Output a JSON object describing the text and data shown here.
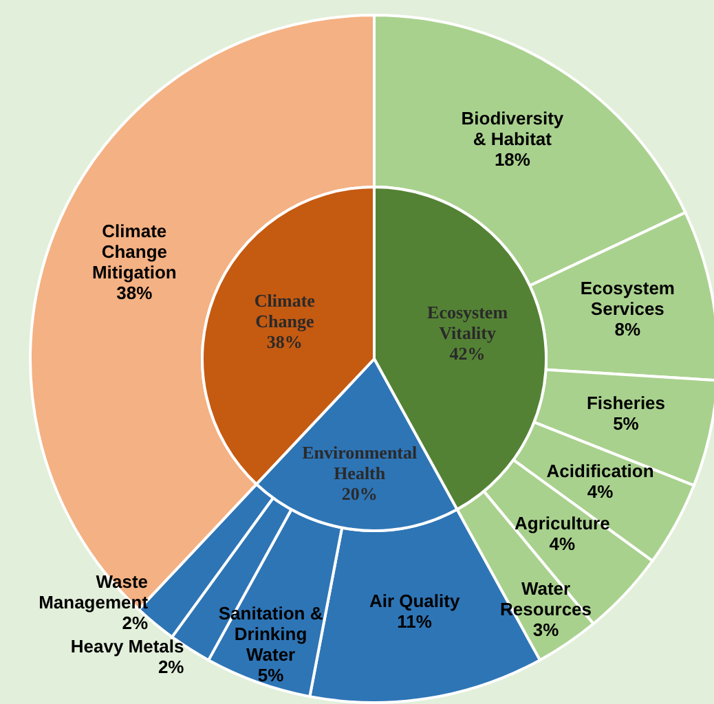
{
  "chart_data": [
    {
      "type": "pie",
      "categories": [
        "Ecosystem Vitality",
        "Environmental Health",
        "Climate Change"
      ],
      "values": [
        42,
        20,
        38
      ],
      "colors": [
        "#548235",
        "#2e75b6",
        "#c55a11"
      ],
      "value_labels": [
        "42%",
        "20%",
        "38%"
      ]
    },
    {
      "type": "donut",
      "categories": [
        "Biodiversity & Habitat",
        "Ecosystem Services",
        "Fisheries",
        "Acidification",
        "Agriculture",
        "Water Resources",
        "Air Quality",
        "Sanitation & Drinking Water",
        "Heavy Metals",
        "Waste Management",
        "Climate Change Mitigation"
      ],
      "values": [
        18,
        8,
        5,
        4,
        4,
        3,
        11,
        5,
        2,
        2,
        38
      ],
      "colors": [
        "#a9d18e",
        "#a9d18e",
        "#a9d18e",
        "#a9d18e",
        "#a9d18e",
        "#a9d18e",
        "#2e75b6",
        "#2e75b6",
        "#2e75b6",
        "#2e75b6",
        "#f4b183"
      ],
      "value_labels": [
        "18%",
        "8%",
        "5%",
        "4%",
        "4%",
        "3%",
        "11%",
        "5%",
        "2%",
        "2%",
        "38%"
      ]
    }
  ]
}
